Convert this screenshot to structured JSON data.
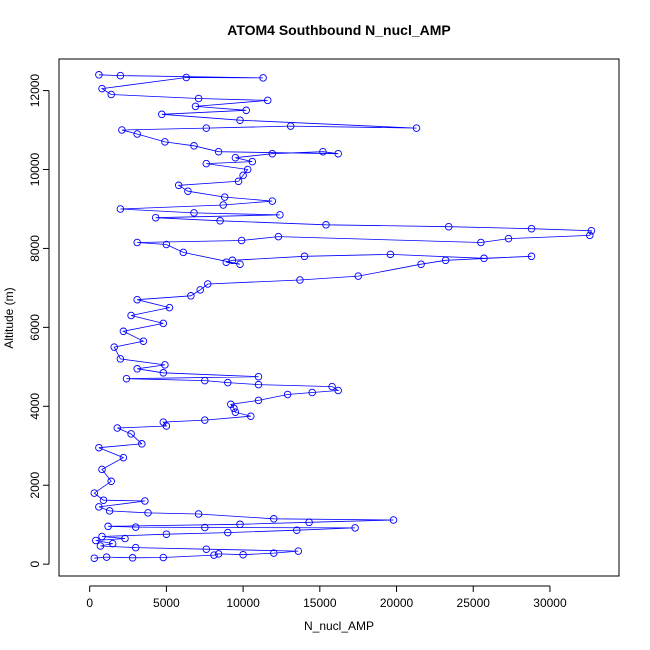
{
  "chart_data": {
    "type": "scatter",
    "title": "ATOM4 Southbound N_nucl_AMP",
    "xlabel": "N_nucl_AMP",
    "ylabel": "Altitude (m)",
    "xlim": [
      -2000,
      34500
    ],
    "ylim": [
      -300,
      12800
    ],
    "x_ticks": [
      0,
      5000,
      10000,
      15000,
      20000,
      25000,
      30000
    ],
    "y_ticks": [
      0,
      2000,
      4000,
      6000,
      8000,
      10000,
      12000
    ],
    "grid": false,
    "legend": "none",
    "color": "#0000ff",
    "series": [
      {
        "points": [
          [
            300,
            150
          ],
          [
            1100,
            180
          ],
          [
            2800,
            160
          ],
          [
            4800,
            170
          ],
          [
            8100,
            230
          ],
          [
            8400,
            260
          ],
          [
            10000,
            240
          ],
          [
            12000,
            280
          ],
          [
            13600,
            330
          ],
          [
            7600,
            380
          ],
          [
            3000,
            420
          ],
          [
            700,
            460
          ],
          [
            1500,
            520
          ],
          [
            400,
            600
          ],
          [
            2300,
            650
          ],
          [
            800,
            700
          ],
          [
            5000,
            760
          ],
          [
            9000,
            800
          ],
          [
            13500,
            860
          ],
          [
            17300,
            920
          ],
          [
            7500,
            930
          ],
          [
            3000,
            940
          ],
          [
            1200,
            960
          ],
          [
            9800,
            1010
          ],
          [
            14300,
            1060
          ],
          [
            19800,
            1120
          ],
          [
            12000,
            1150
          ],
          [
            7100,
            1270
          ],
          [
            3800,
            1300
          ],
          [
            1300,
            1350
          ],
          [
            600,
            1450
          ],
          [
            3600,
            1600
          ],
          [
            900,
            1620
          ],
          [
            300,
            1800
          ],
          [
            1400,
            2100
          ],
          [
            800,
            2400
          ],
          [
            2200,
            2700
          ],
          [
            600,
            2950
          ],
          [
            3400,
            3050
          ],
          [
            2700,
            3300
          ],
          [
            1800,
            3450
          ],
          [
            5000,
            3500
          ],
          [
            4800,
            3600
          ],
          [
            7500,
            3650
          ],
          [
            10500,
            3750
          ],
          [
            9500,
            3850
          ],
          [
            9400,
            3950
          ],
          [
            9200,
            4050
          ],
          [
            11000,
            4150
          ],
          [
            12900,
            4300
          ],
          [
            14500,
            4350
          ],
          [
            16200,
            4400
          ],
          [
            15800,
            4500
          ],
          [
            11000,
            4550
          ],
          [
            9000,
            4600
          ],
          [
            7500,
            4650
          ],
          [
            2400,
            4700
          ],
          [
            11000,
            4750
          ],
          [
            4800,
            4850
          ],
          [
            3100,
            4950
          ],
          [
            4900,
            5050
          ],
          [
            2000,
            5200
          ],
          [
            1600,
            5500
          ],
          [
            3500,
            5650
          ],
          [
            2200,
            5900
          ],
          [
            4800,
            6100
          ],
          [
            2700,
            6300
          ],
          [
            5200,
            6500
          ],
          [
            3100,
            6700
          ],
          [
            6600,
            6800
          ],
          [
            7200,
            6950
          ],
          [
            7700,
            7100
          ],
          [
            13700,
            7200
          ],
          [
            17500,
            7300
          ],
          [
            21600,
            7600
          ],
          [
            23200,
            7700
          ],
          [
            28800,
            7800
          ],
          [
            25700,
            7750
          ],
          [
            19600,
            7850
          ],
          [
            14000,
            7800
          ],
          [
            9300,
            7700
          ],
          [
            8900,
            7650
          ],
          [
            9800,
            7600
          ],
          [
            6100,
            7900
          ],
          [
            5000,
            8100
          ],
          [
            3100,
            8150
          ],
          [
            9900,
            8200
          ],
          [
            12300,
            8300
          ],
          [
            25500,
            8150
          ],
          [
            27300,
            8250
          ],
          [
            32600,
            8330
          ],
          [
            32700,
            8450
          ],
          [
            28800,
            8500
          ],
          [
            23400,
            8550
          ],
          [
            15400,
            8600
          ],
          [
            8500,
            8700
          ],
          [
            4300,
            8780
          ],
          [
            12400,
            8850
          ],
          [
            6800,
            8900
          ],
          [
            2000,
            9000
          ],
          [
            8700,
            9100
          ],
          [
            11900,
            9200
          ],
          [
            8800,
            9300
          ],
          [
            6400,
            9450
          ],
          [
            5800,
            9600
          ],
          [
            9700,
            9700
          ],
          [
            10000,
            9850
          ],
          [
            10300,
            10000
          ],
          [
            7600,
            10150
          ],
          [
            10600,
            10200
          ],
          [
            9500,
            10300
          ],
          [
            11900,
            10400
          ],
          [
            15200,
            10450
          ],
          [
            16200,
            10400
          ],
          [
            8400,
            10450
          ],
          [
            6800,
            10600
          ],
          [
            4900,
            10700
          ],
          [
            3100,
            10900
          ],
          [
            2100,
            11000
          ],
          [
            7600,
            11050
          ],
          [
            13100,
            11100
          ],
          [
            21300,
            11050
          ],
          [
            9800,
            11250
          ],
          [
            4700,
            11400
          ],
          [
            10200,
            11500
          ],
          [
            6900,
            11600
          ],
          [
            11600,
            11750
          ],
          [
            7100,
            11800
          ],
          [
            1400,
            11900
          ],
          [
            800,
            12050
          ],
          [
            6300,
            12330
          ],
          [
            11300,
            12320
          ],
          [
            2000,
            12380
          ],
          [
            600,
            12400
          ]
        ]
      }
    ]
  }
}
